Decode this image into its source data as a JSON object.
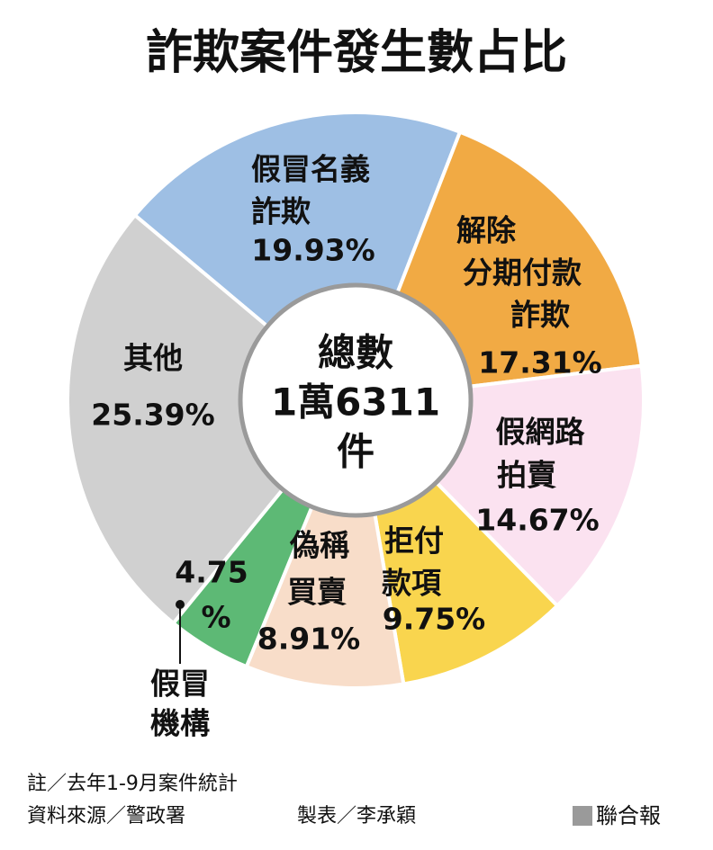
{
  "chart_data": {
    "type": "donut",
    "title": "詐欺案件發生數占比",
    "center_text": [
      "總數",
      "1萬6311",
      "件"
    ],
    "categories": [
      [
        "假冒名義",
        "詐欺"
      ],
      [
        "解除",
        "分期付款",
        "詐欺"
      ],
      [
        "假網路",
        "拍賣"
      ],
      [
        "拒付",
        "款項"
      ],
      [
        "偽稱",
        "買賣"
      ],
      [
        "假冒",
        "機構"
      ],
      [
        "其他"
      ]
    ],
    "values": [
      19.93,
      17.31,
      14.67,
      9.75,
      8.91,
      4.75,
      25.39
    ],
    "value_labels": [
      "19.93%",
      "17.31%",
      "14.67%",
      "9.75%",
      "8.91%",
      [
        "4.75",
        "%"
      ],
      "25.39%"
    ],
    "colors": [
      "#9ebfe4",
      "#f1aa44",
      "#fbe2f0",
      "#f9d54e",
      "#f8ddc9",
      "#5db975",
      "#d0d0d0"
    ]
  },
  "notes": [
    "註／去年1-9月案件統計",
    "資料來源／警政署",
    "製表／李承穎"
  ],
  "publisher": "聯合報"
}
